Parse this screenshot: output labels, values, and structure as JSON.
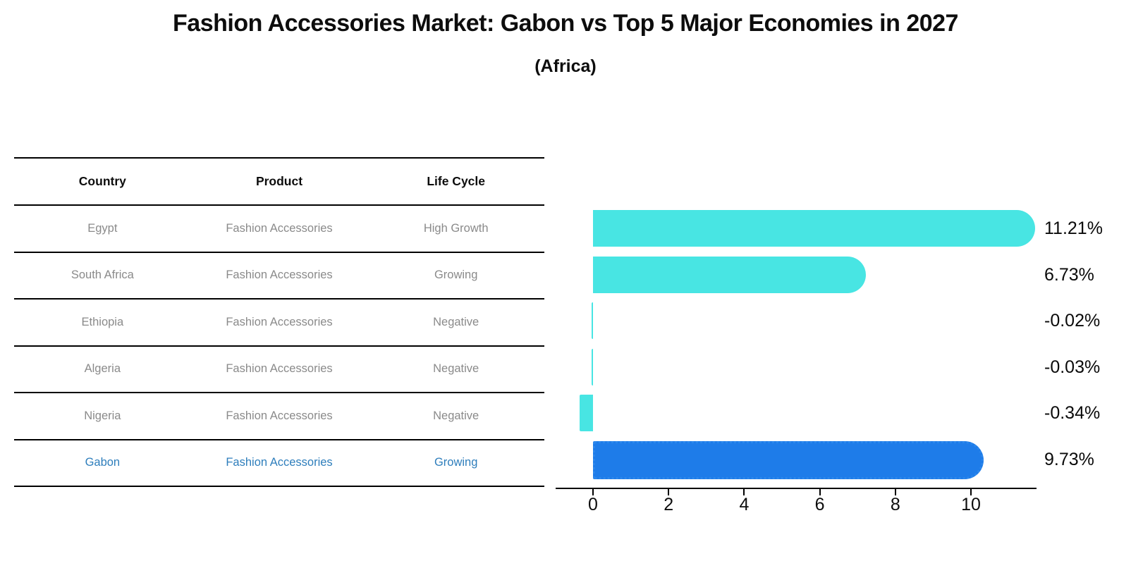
{
  "title": "Fashion Accessories Market: Gabon vs Top 5 Major Economies in 2027",
  "subtitle": "(Africa)",
  "table": {
    "headers": [
      "Country",
      "Product",
      "Life Cycle"
    ],
    "rows": [
      {
        "country": "Egypt",
        "product": "Fashion Accessories",
        "life_cycle": "High Growth",
        "highlight": false
      },
      {
        "country": "South Africa",
        "product": "Fashion Accessories",
        "life_cycle": "Growing",
        "highlight": false
      },
      {
        "country": "Ethiopia",
        "product": "Fashion Accessories",
        "life_cycle": "Negative",
        "highlight": false
      },
      {
        "country": "Algeria",
        "product": "Fashion Accessories",
        "life_cycle": "Negative",
        "highlight": false
      },
      {
        "country": "Nigeria",
        "product": "Fashion Accessories",
        "life_cycle": "Negative",
        "highlight": false
      },
      {
        "country": "Gabon",
        "product": "Fashion Accessories",
        "life_cycle": "Growing",
        "highlight": true
      }
    ]
  },
  "chart_data": {
    "type": "bar",
    "orientation": "horizontal",
    "title": "Fashion Accessories Market: Gabon vs Top 5 Major Economies in 2027",
    "subtitle": "(Africa)",
    "categories": [
      "Egypt",
      "South Africa",
      "Ethiopia",
      "Algeria",
      "Nigeria",
      "Gabon"
    ],
    "values": [
      11.21,
      6.73,
      -0.02,
      -0.03,
      -0.34,
      9.73
    ],
    "value_labels": [
      "11.21%",
      "6.73%",
      "-0.02%",
      "-0.03%",
      "-0.34%",
      "9.73%"
    ],
    "unit": "%",
    "xticks": [
      0,
      2,
      4,
      6,
      8,
      10
    ],
    "xlim": [
      -1,
      11.74
    ],
    "grid": false,
    "legend": false,
    "highlight_index": 5,
    "bar_color": "#48e5e3",
    "highlight_color": "#1e7ce9",
    "highlight_text_color": "#2e7ebc",
    "text_color": "#8a8a8a",
    "axis_color": "#000000"
  }
}
